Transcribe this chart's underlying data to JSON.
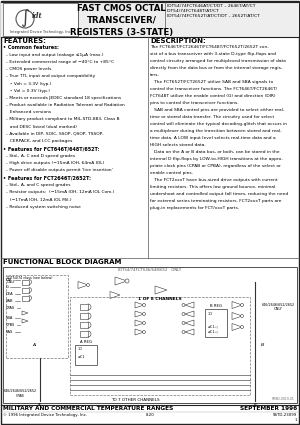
{
  "title_main": "FAST CMOS OCTAL\nTRANSCEIVER/\nREGISTERS (3-STATE)",
  "part_numbers_line1": "IDT54/74FCT646AT/CT/DT – 2646T/AT/CT",
  "part_numbers_line2": "IDT54/74FCT648T/AT/CT",
  "part_numbers_line3": "IDT54/74FCT652T/AT/CT/DT – 2652T/AT/CT",
  "company": "Integrated Device Technology, Inc.",
  "features_title": "FEATURES:",
  "description_title": "DESCRIPTION:",
  "functional_block_title": "FUNCTIONAL BLOCK DIAGRAM",
  "footer_left": "MILITARY AND COMMERCIAL TEMPERATURE RANGES",
  "footer_right": "SEPTEMBER 1996",
  "footer_company": "© 1996 Integrated Device Technology, Inc.",
  "footer_page": "8.20",
  "footer_doc": "SSTD-23099\n1",
  "bg_color": "#ffffff"
}
